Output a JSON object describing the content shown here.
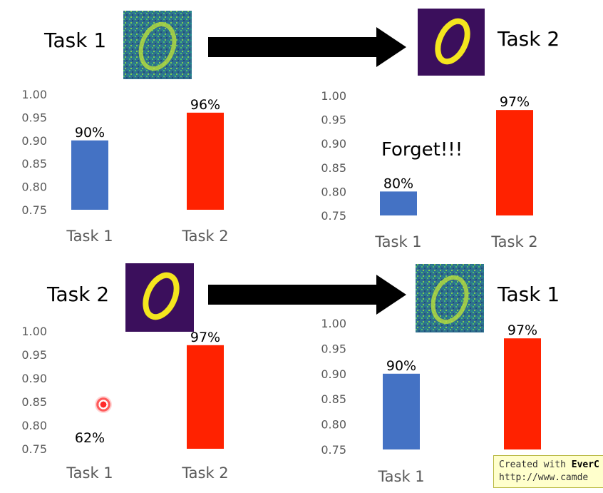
{
  "panels": [
    {
      "title": "Task 1",
      "image": "noisy-zero-digit",
      "next_title": "Task 2",
      "next_image": "clean-zero-digit"
    },
    {
      "title": "Task 2",
      "image": "clean-zero-digit",
      "next_title": "Task 1",
      "next_image": "noisy-zero-digit"
    }
  ],
  "annotations": {
    "forget": "Forget!!!"
  },
  "watermark": {
    "line1_prefix": "Created with ",
    "line1_brand": "EverC",
    "line2": "http://www.camde"
  },
  "colors": {
    "task1_bar": "#4472c4",
    "task2_bar": "#ff2200",
    "axis_text": "#595959",
    "image_bg_noisy": "#2f6f8e",
    "image_bg_clean": "#3b0f5c",
    "digit_clean": "#f4e61e"
  },
  "chart_data": [
    {
      "type": "bar",
      "categories": [
        "Task 1",
        "Task 2"
      ],
      "values": [
        0.9,
        0.96
      ],
      "data_labels": [
        "90%",
        "96%"
      ],
      "ylim": [
        0.75,
        1.0
      ],
      "yticks": [
        "1.00",
        "0.95",
        "0.90",
        "0.85",
        "0.80",
        "0.75"
      ]
    },
    {
      "type": "bar",
      "categories": [
        "Task 1",
        "Task 2"
      ],
      "values": [
        0.8,
        0.97
      ],
      "data_labels": [
        "80%",
        "97%"
      ],
      "ylim": [
        0.75,
        1.0
      ],
      "yticks": [
        "1.00",
        "0.95",
        "0.90",
        "0.85",
        "0.80",
        "0.75"
      ]
    },
    {
      "type": "bar",
      "categories": [
        "Task 1",
        "Task 2"
      ],
      "values": [
        0.62,
        0.97
      ],
      "data_labels": [
        "62%",
        "97%"
      ],
      "ylim": [
        0.75,
        1.0
      ],
      "yticks": [
        "1.00",
        "0.95",
        "0.90",
        "0.85",
        "0.80",
        "0.75"
      ]
    },
    {
      "type": "bar",
      "categories": [
        "Task 1",
        "Task 2"
      ],
      "values": [
        0.9,
        0.97
      ],
      "data_labels": [
        "90%",
        "97%"
      ],
      "ylim": [
        0.75,
        1.0
      ],
      "yticks": [
        "1.00",
        "0.95",
        "0.90",
        "0.85",
        "0.80",
        "0.75"
      ]
    }
  ]
}
